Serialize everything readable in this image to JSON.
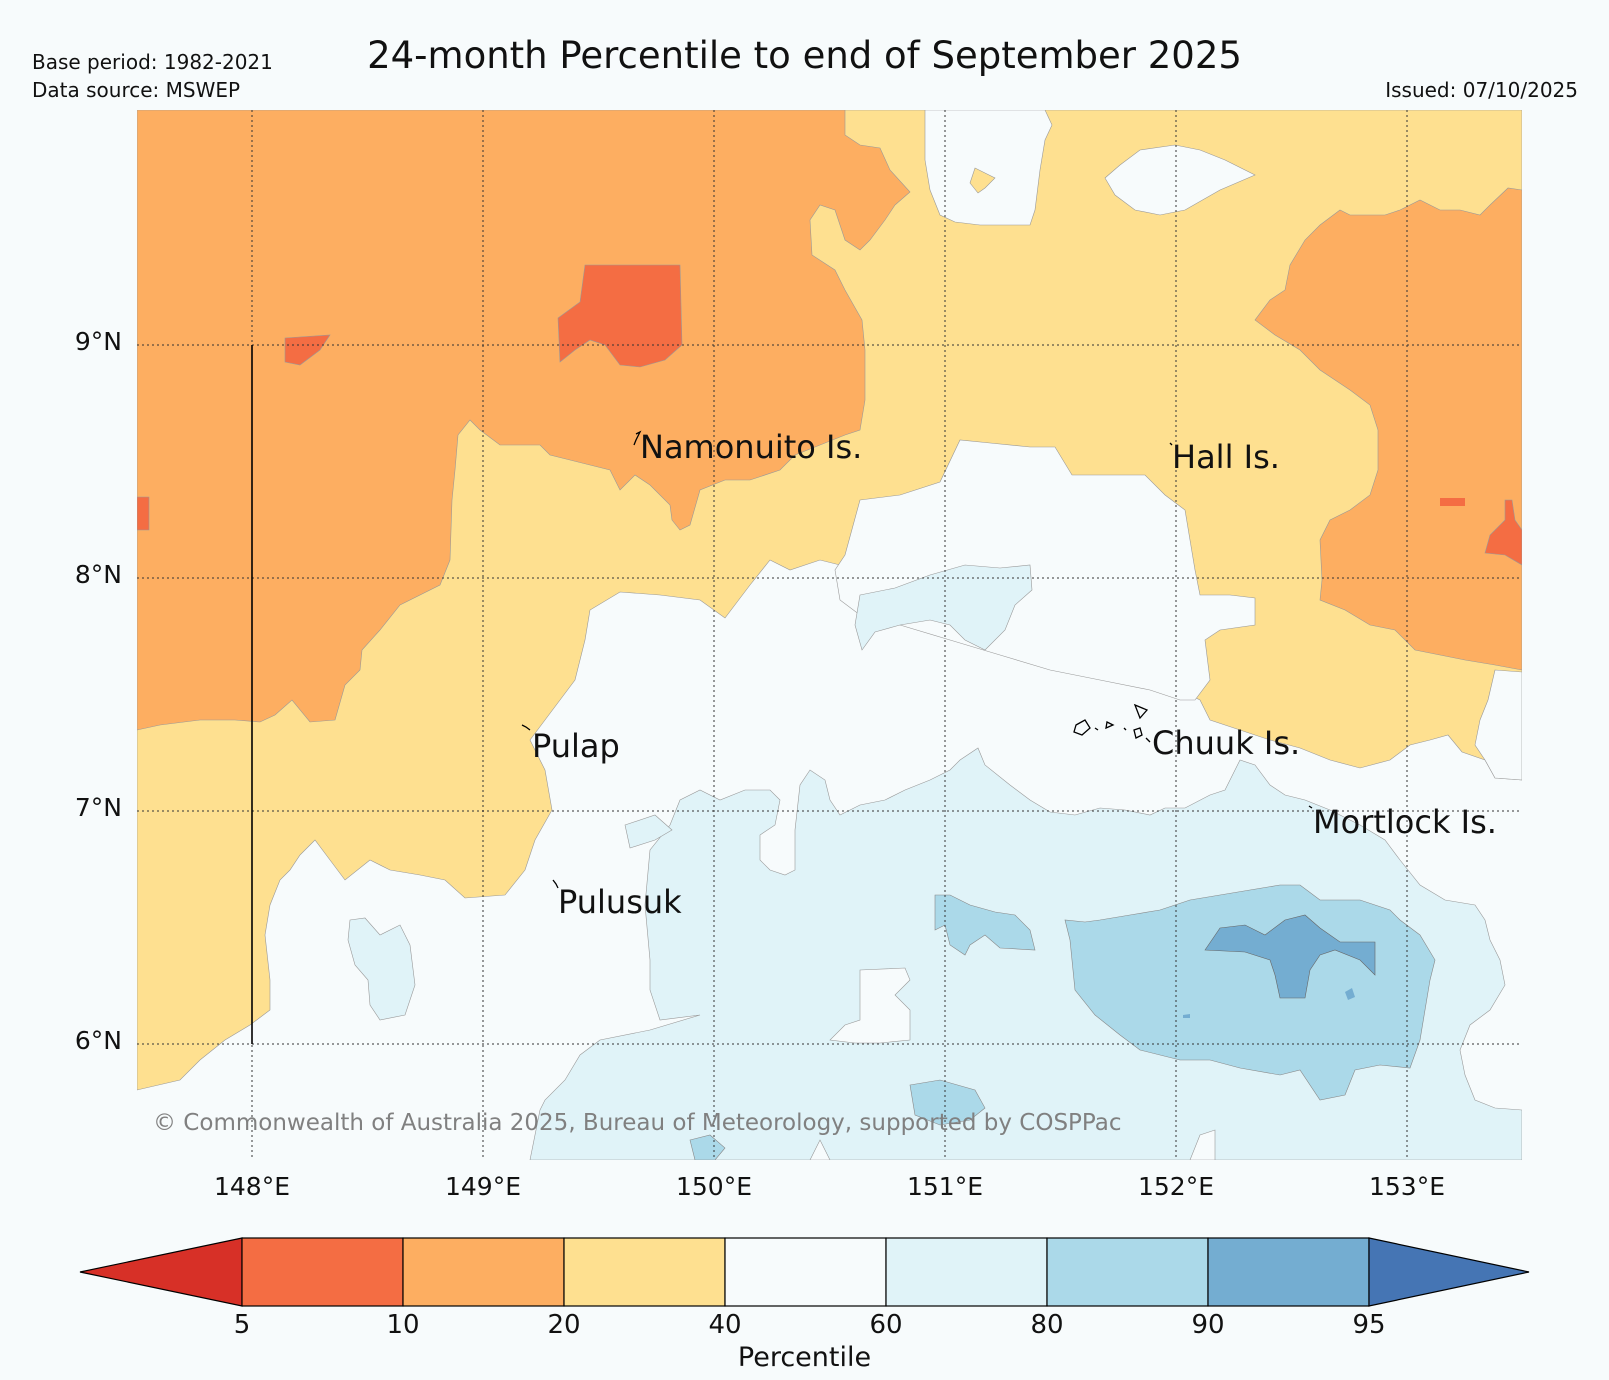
{
  "header": {
    "title": "24-month Percentile to end of September 2025",
    "base_period": "Base period: 1982-2021",
    "data_source": "Data source: MSWEP",
    "issued": "Issued: 07/10/2025"
  },
  "map": {
    "lat_labels": [
      "9°N",
      "8°N",
      "7°N",
      "6°N"
    ],
    "lon_labels": [
      "148°E",
      "149°E",
      "150°E",
      "151°E",
      "152°E",
      "153°E"
    ],
    "places": [
      {
        "name": "Namonuito Is."
      },
      {
        "name": "Hall Is."
      },
      {
        "name": "Pulap"
      },
      {
        "name": "Chuuk Is."
      },
      {
        "name": "Mortlock Is."
      },
      {
        "name": "Pulusuk"
      }
    ],
    "copyright": "© Commonwealth of Australia 2025, Bureau of Meteorology, supported by COSPPac"
  },
  "colorbar": {
    "label": "Percentile",
    "ticks": [
      "5",
      "10",
      "20",
      "40",
      "60",
      "80",
      "90",
      "95"
    ],
    "colors": {
      "below_5": "#d73027",
      "p5_10": "#f46d43",
      "p10_20": "#fdae61",
      "p20_40": "#fee090",
      "p40_60": "#f7fbfc",
      "p60_80": "#e0f3f8",
      "p80_90": "#abd9e9",
      "p90_95": "#74add1",
      "above_95": "#4575b4"
    }
  }
}
